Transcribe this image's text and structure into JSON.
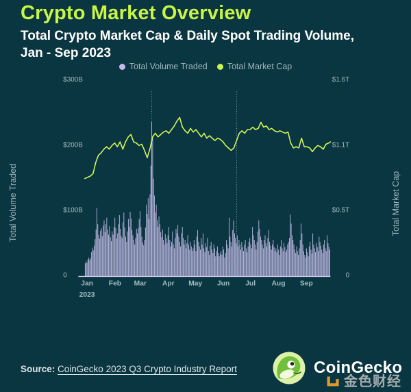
{
  "header": {
    "title": "Crypto Market Overview",
    "subtitle_line1": "Total Crypto Market Cap & Daily Spot Trading Volume,",
    "subtitle_line2": "Jan - Sep 2023"
  },
  "legend": {
    "items": [
      {
        "label": "Total Volume Traded",
        "color": "#c7b9ea"
      },
      {
        "label": "Total Market Cap",
        "color": "#cdf548"
      }
    ]
  },
  "chart_data": {
    "type": "bar",
    "subtype": "bar+line combo, daily, Jan 1 - Sep 30 2023",
    "days_total": 273,
    "months": [
      {
        "label": "Jan",
        "day": 0
      },
      {
        "label": "Feb",
        "day": 31
      },
      {
        "label": "Mar",
        "day": 59
      },
      {
        "label": "Apr",
        "day": 90
      },
      {
        "label": "May",
        "day": 120
      },
      {
        "label": "Jun",
        "day": 151
      },
      {
        "label": "Jul",
        "day": 181
      },
      {
        "label": "Aug",
        "day": 212
      },
      {
        "label": "Sep",
        "day": 243
      }
    ],
    "year_label": "2023",
    "left_axis": {
      "title": "Total Volume Traded",
      "max": 300,
      "ticks": [
        {
          "label": "$300B",
          "value": 300
        },
        {
          "label": "$200B",
          "value": 200
        },
        {
          "label": "$100B",
          "value": 100
        },
        {
          "label": "0",
          "value": 0
        }
      ]
    },
    "right_axis": {
      "title": "Total Market Cap",
      "max": 1.6,
      "ticks": [
        {
          "label": "$1.6T",
          "value": 1.6
        },
        {
          "label": "$1.1T",
          "value": 1.07
        },
        {
          "label": "$0.5T",
          "value": 0.53
        },
        {
          "label": "0",
          "value": 0
        }
      ]
    },
    "event_lines_days": [
      74,
      168
    ],
    "series": [
      {
        "name": "Total Volume Traded",
        "type": "bar",
        "axis": "left",
        "unit": "USD billions per day",
        "values": [
          18,
          21,
          19,
          24,
          27,
          23,
          26,
          35,
          42,
          38,
          45,
          55,
          70,
          103,
          78,
          62,
          56,
          68,
          72,
          60,
          76,
          84,
          66,
          78,
          88,
          70,
          62,
          75,
          58,
          52,
          67,
          62,
          74,
          88,
          72,
          56,
          64,
          78,
          92,
          71,
          60,
          57,
          81,
          96,
          73,
          59,
          51,
          67,
          86,
          74,
          97,
          87,
          69,
          61,
          54,
          47,
          57,
          71,
          64,
          72,
          86,
          98,
          74,
          59,
          50,
          46,
          54,
          73,
          108,
          94,
          118,
          86,
          124,
          168,
          235,
          214,
          148,
          122,
          96,
          108,
          84,
          74,
          90,
          78,
          66,
          58,
          70,
          54,
          47,
          63,
          57,
          49,
          61,
          74,
          54,
          44,
          51,
          67,
          47,
          41,
          57,
          71,
          64,
          77,
          59,
          51,
          44,
          64,
          74,
          57,
          47,
          54,
          41,
          49,
          61,
          47,
          39,
          51,
          44,
          37,
          41,
          54,
          47,
          37,
          59,
          69,
          51,
          44,
          39,
          57,
          47,
          64,
          41,
          35,
          49,
          43,
          57,
          37,
          31,
          45,
          51,
          39,
          34,
          47,
          41,
          29,
          37,
          44,
          34,
          29,
          33,
          37,
          31,
          44,
          39,
          27,
          34,
          54,
          47,
          41,
          88,
          59,
          51,
          44,
          69,
          84,
          64,
          57,
          49,
          61,
          44,
          54,
          47,
          39,
          51,
          43,
          37,
          47,
          54,
          41,
          35,
          44,
          51,
          57,
          47,
          41,
          74,
          61,
          54,
          47,
          39,
          51,
          67,
          84,
          71,
          59,
          54,
          47,
          41,
          54,
          61,
          49,
          44,
          57,
          69,
          51,
          45,
          39,
          47,
          54,
          43,
          37,
          41,
          35,
          47,
          39,
          31,
          44,
          54,
          41,
          37,
          49,
          43,
          35,
          39,
          47,
          51,
          57,
          93,
          79,
          61,
          54,
          47,
          39,
          34,
          44,
          37,
          31,
          41,
          54,
          79,
          64,
          47,
          37,
          31,
          27,
          41,
          35,
          29,
          44,
          51,
          39,
          33,
          64,
          47,
          41,
          35,
          49,
          43,
          37,
          59,
          51,
          45,
          39,
          34,
          47,
          54,
          41,
          37,
          61,
          49,
          43,
          39
        ]
      },
      {
        "name": "Total Market Cap",
        "type": "line",
        "axis": "right",
        "unit": "USD trillions",
        "x_days": [
          0,
          3,
          6,
          9,
          12,
          15,
          18,
          21,
          24,
          27,
          30,
          33,
          36,
          39,
          42,
          45,
          48,
          51,
          54,
          57,
          60,
          63,
          66,
          69,
          72,
          75,
          78,
          81,
          84,
          87,
          90,
          93,
          96,
          99,
          102,
          105,
          108,
          111,
          114,
          117,
          120,
          123,
          126,
          129,
          132,
          135,
          138,
          141,
          144,
          147,
          150,
          153,
          156,
          159,
          162,
          165,
          168,
          171,
          174,
          177,
          180,
          183,
          186,
          189,
          192,
          195,
          198,
          201,
          204,
          207,
          210,
          213,
          216,
          219,
          222,
          225,
          228,
          231,
          234,
          237,
          240,
          243,
          246,
          249,
          252,
          255,
          258,
          261,
          264,
          267,
          270,
          272
        ],
        "values": [
          0.79,
          0.8,
          0.81,
          0.83,
          0.92,
          0.98,
          1.0,
          1.03,
          1.05,
          1.03,
          1.06,
          1.08,
          1.05,
          1.09,
          1.03,
          1.09,
          1.13,
          1.15,
          1.09,
          1.08,
          1.06,
          1.07,
          1.02,
          0.96,
          1.03,
          1.13,
          1.16,
          1.13,
          1.15,
          1.17,
          1.18,
          1.16,
          1.19,
          1.22,
          1.26,
          1.29,
          1.21,
          1.18,
          1.16,
          1.2,
          1.17,
          1.19,
          1.16,
          1.13,
          1.16,
          1.12,
          1.14,
          1.12,
          1.1,
          1.12,
          1.11,
          1.09,
          1.06,
          1.04,
          1.02,
          1.04,
          1.1,
          1.16,
          1.18,
          1.16,
          1.19,
          1.19,
          1.21,
          1.19,
          1.2,
          1.25,
          1.21,
          1.22,
          1.19,
          1.2,
          1.18,
          1.17,
          1.18,
          1.17,
          1.16,
          1.17,
          1.08,
          1.04,
          1.05,
          1.04,
          1.12,
          1.05,
          1.05,
          1.04,
          1.01,
          1.04,
          1.06,
          1.05,
          1.03,
          1.07,
          1.08,
          1.09
        ]
      }
    ]
  },
  "footer": {
    "source_label": "Source:",
    "source_link": "CoinGecko 2023 Q3 Crypto Industry Report",
    "brand": "CoinGecko",
    "watermark": "金色财经"
  },
  "colors": {
    "background": "#0a3641",
    "title": "#c8f546",
    "subtitle": "#ffffff",
    "legend_text": "#9eb6bb",
    "axis_text": "#a3bcc1",
    "bar": "#bfb8e2",
    "line": "#d3f855",
    "event_line": "#c3d4d8",
    "baseline": "#cfc9ea",
    "month_text": "#9fbdc2",
    "watermark_icon": "#f0a32b",
    "watermark_text": "#b3b6b8",
    "gecko_circle": "#dcf2a8",
    "gecko_body": "#72bf3a"
  }
}
